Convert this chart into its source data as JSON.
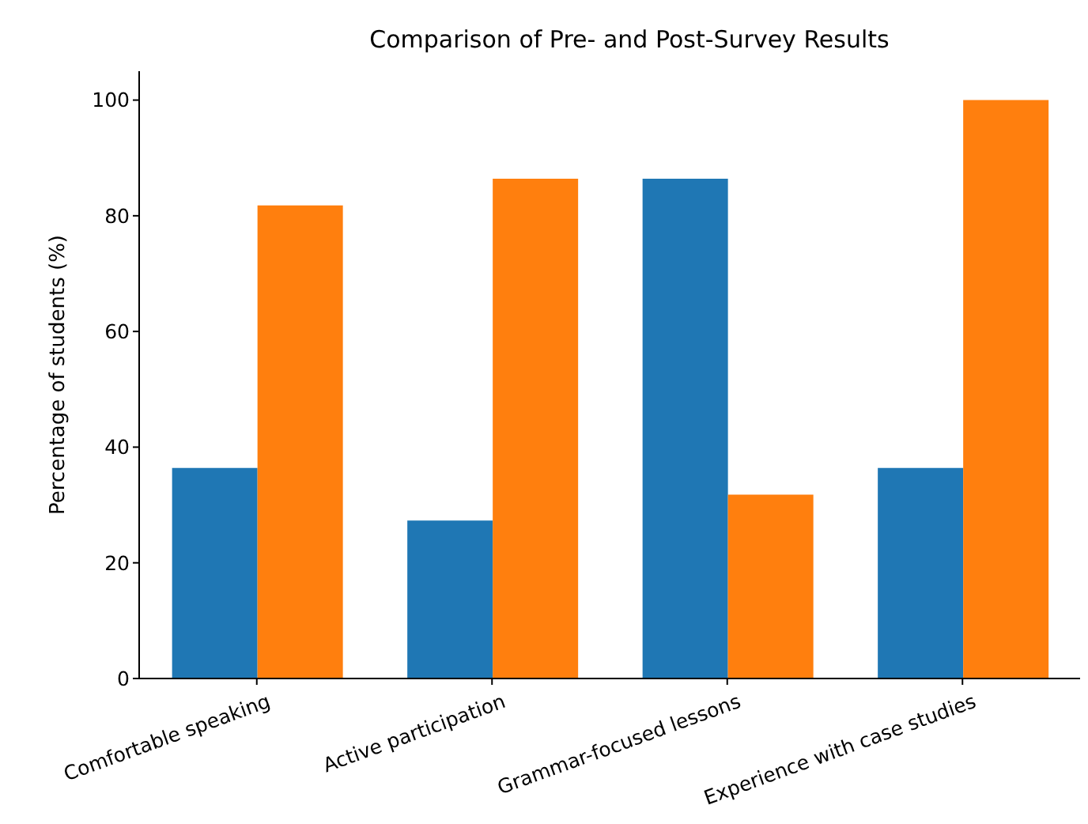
{
  "chart_data": {
    "type": "bar",
    "title": "Comparison of Pre- and Post-Survey Results",
    "ylabel": "Percentage of students (%)",
    "categories": [
      "Comfortable speaking",
      "Active participation",
      "Grammar-focused lessons",
      "Experience with case studies"
    ],
    "series": [
      {
        "color": "#1f77b4",
        "values": [
          36.4,
          27.3,
          86.4,
          36.4
        ]
      },
      {
        "color": "#ff7f0e",
        "values": [
          81.8,
          86.4,
          31.8,
          100
        ]
      }
    ],
    "ylim": [
      0,
      105
    ],
    "yticks": [
      0,
      20,
      40,
      60,
      80,
      100
    ],
    "grid": false,
    "legend": false
  }
}
